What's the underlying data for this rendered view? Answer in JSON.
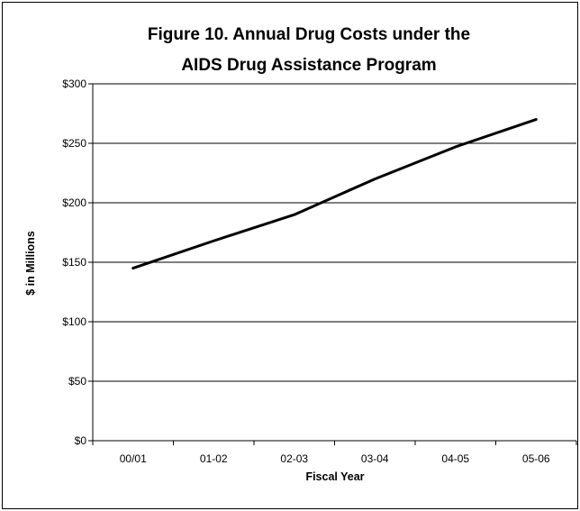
{
  "chart_data": {
    "type": "line",
    "title_lines": [
      "Figure 10. Annual Drug Costs under the",
      "AIDS Drug Assistance Program"
    ],
    "xlabel": "Fiscal Year",
    "ylabel": "$ in Millions",
    "categories": [
      "00/01",
      "01-02",
      "02-03",
      "03-04",
      "04-05",
      "05-06"
    ],
    "series": [
      {
        "values": [
          145,
          168,
          190,
          220,
          247,
          270
        ],
        "color": "#000000"
      }
    ],
    "ylim": [
      0,
      300
    ],
    "yticks": [
      {
        "value": 0,
        "label": "$0"
      },
      {
        "value": 50,
        "label": "$50"
      },
      {
        "value": 100,
        "label": "$100"
      },
      {
        "value": 150,
        "label": "$150"
      },
      {
        "value": 200,
        "label": "$200"
      },
      {
        "value": 250,
        "label": "$250"
      },
      {
        "value": 300,
        "label": "$300"
      }
    ],
    "grid": "horizontal",
    "legend": "none"
  }
}
